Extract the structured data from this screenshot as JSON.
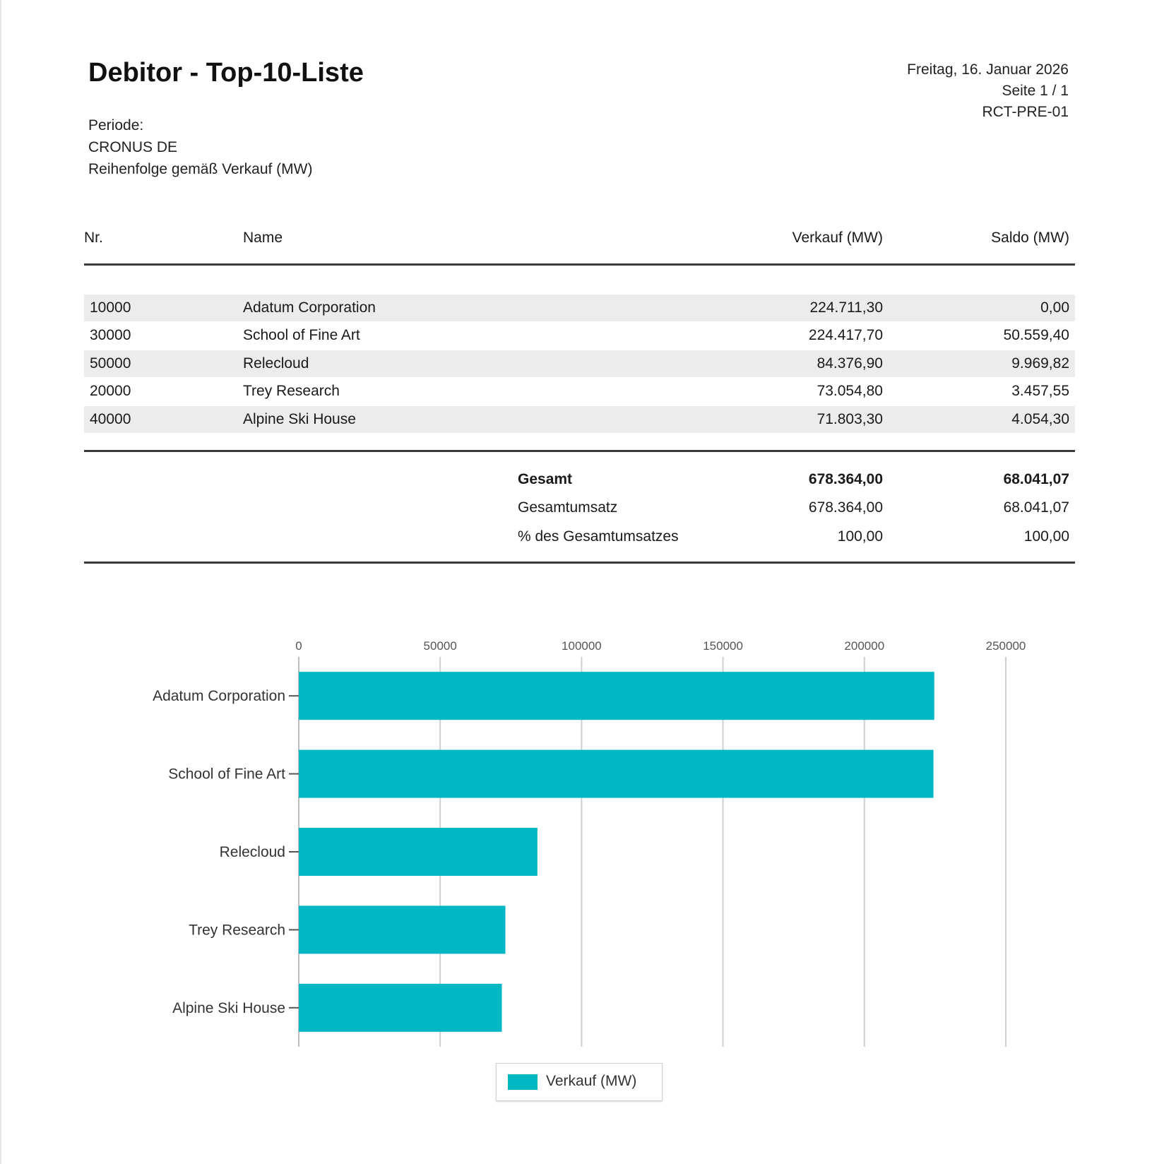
{
  "report": {
    "title": "Debitor - Top-10-Liste",
    "period_label": "Periode:",
    "company": "CRONUS DE",
    "sort_order": "Reihenfolge gemäß Verkauf (MW)",
    "date": "Freitag, 16. Januar 2026",
    "page": "Seite 1 / 1",
    "report_id": "RCT-PRE-01"
  },
  "table": {
    "headers": {
      "nr": "Nr.",
      "name": "Name",
      "sales": "Verkauf (MW)",
      "balance": "Saldo (MW)"
    },
    "rows": [
      {
        "nr": "10000",
        "name": "Adatum Corporation",
        "sales": "224.711,30",
        "balance": "0,00"
      },
      {
        "nr": "30000",
        "name": "School of Fine Art",
        "sales": "224.417,70",
        "balance": "50.559,40"
      },
      {
        "nr": "50000",
        "name": "Relecloud",
        "sales": "84.376,90",
        "balance": "9.969,82"
      },
      {
        "nr": "20000",
        "name": "Trey Research",
        "sales": "73.054,80",
        "balance": "3.457,55"
      },
      {
        "nr": "40000",
        "name": "Alpine Ski House",
        "sales": "71.803,30",
        "balance": "4.054,30"
      }
    ],
    "totals": [
      {
        "label": "Gesamt",
        "sales": "678.364,00",
        "balance": "68.041,07"
      },
      {
        "label": "Gesamtumsatz",
        "sales": "678.364,00",
        "balance": "68.041,07"
      },
      {
        "label": "% des Gesamtumsatzes",
        "sales": "100,00",
        "balance": "100,00"
      }
    ]
  },
  "chart_data": {
    "type": "bar",
    "orientation": "horizontal",
    "categories": [
      "Adatum Corporation",
      "School of Fine Art",
      "Relecloud",
      "Trey Research",
      "Alpine Ski House"
    ],
    "series": [
      {
        "name": "Verkauf (MW)",
        "values": [
          224711.3,
          224417.7,
          84376.9,
          73054.8,
          71803.3
        ],
        "color": "#00b7c3"
      }
    ],
    "xlim": [
      0,
      250000
    ],
    "xticks": [
      0,
      50000,
      100000,
      150000,
      200000,
      250000
    ],
    "xtick_labels": [
      "0",
      "50000",
      "100000",
      "150000",
      "200000",
      "250000"
    ],
    "x_axis_position": "top",
    "grid": true,
    "legend_position": "bottom-center",
    "title": "",
    "xlabel": "",
    "ylabel": ""
  }
}
